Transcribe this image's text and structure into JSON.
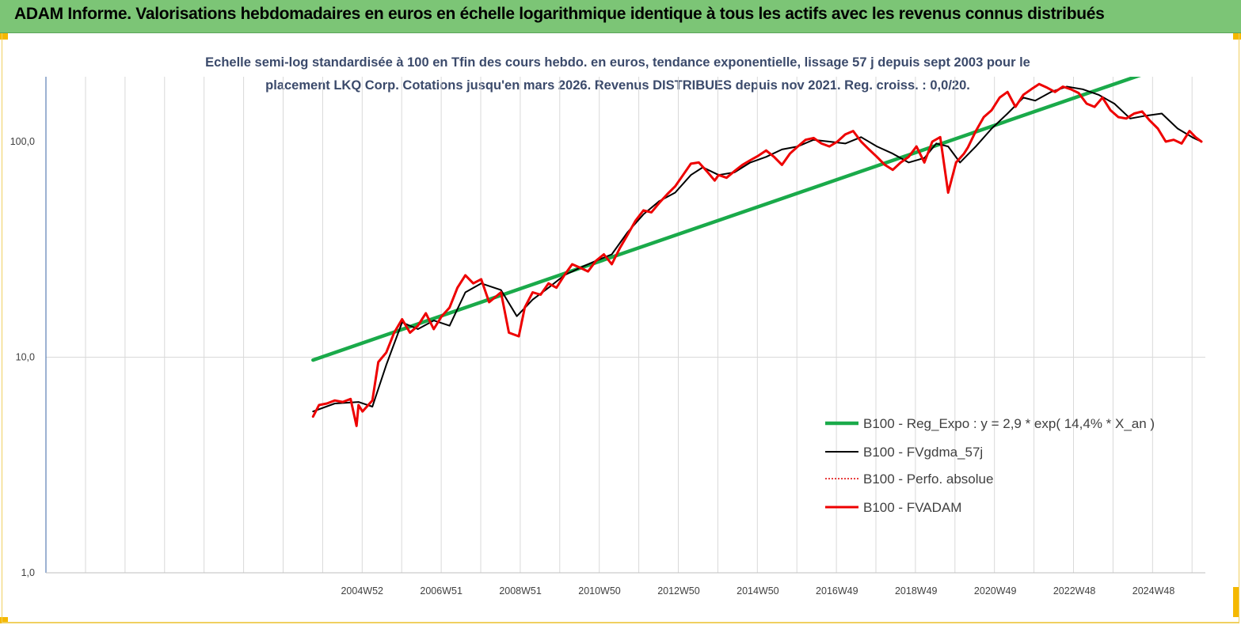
{
  "header": {
    "title": "ADAM Informe. Valorisations hebdomadaires en euros en échelle logarithmique identique à tous les actifs avec les revenus connus distribués"
  },
  "colors": {
    "banner": "#7cc576",
    "regression": "#1aaa4a",
    "smoothed": "#000000",
    "perf": "#e00000",
    "fvadam": "#ee0000",
    "grid": "#d9d9d9",
    "axis": "#5b7fb5"
  },
  "chart_data": {
    "type": "line",
    "title_line1": "Echelle semi-log standardisée à 100 en Tfin des cours hebdo. en euros, tendance exponentielle, lissage 57 j depuis sept 2003  pour le",
    "title_line2": "placement LKQ Corp. Cotations jusqu'en mars 2026. Revenus DISTRIBUES depuis nov 2021. Reg. croiss. : 0,0/20.",
    "y_scale": "log",
    "y_ticks": [
      "1,0",
      "10,0",
      "100,0"
    ],
    "y_tick_values": [
      1,
      10,
      100
    ],
    "ylim": [
      1,
      200
    ],
    "x_ticks": [
      "2004W52",
      "2006W51",
      "2008W51",
      "2010W50",
      "2012W50",
      "2014W50",
      "2016W49",
      "2018W49",
      "2020W49",
      "2022W48",
      "2024W48"
    ],
    "x_tick_values": [
      2004.99,
      2006.99,
      2008.99,
      2010.99,
      2012.99,
      2014.99,
      2016.99,
      2018.99,
      2020.99,
      2022.99,
      2024.99
    ],
    "xlim": [
      1997.0,
      2026.3
    ],
    "grid": "vertical",
    "legend_position": "lower-right",
    "series": [
      {
        "name": "B100 - Reg_Expo : y = 2,9 * exp( 14,4% *  X_an )",
        "x": [
          2003.75,
          2026.2
        ],
        "y": [
          9.7,
          254.7
        ]
      },
      {
        "name": "B100 - FVgdma_57j",
        "x": [
          2003.75,
          2004.3,
          2004.9,
          2005.25,
          2005.6,
          2006.0,
          2006.4,
          2006.8,
          2007.2,
          2007.6,
          2008.0,
          2008.5,
          2008.9,
          2009.3,
          2009.7,
          2010.1,
          2010.5,
          2010.9,
          2011.3,
          2011.7,
          2012.1,
          2012.5,
          2012.9,
          2013.3,
          2013.6,
          2014.0,
          2014.4,
          2014.8,
          2015.2,
          2015.6,
          2016.0,
          2016.4,
          2016.8,
          2017.2,
          2017.6,
          2018.0,
          2018.4,
          2018.8,
          2019.2,
          2019.5,
          2019.8,
          2020.1,
          2020.5,
          2020.9,
          2021.3,
          2021.7,
          2022.0,
          2022.4,
          2022.8,
          2023.2,
          2023.6,
          2024.0,
          2024.4,
          2024.8,
          2025.2,
          2025.6,
          2026.0,
          2026.2
        ],
        "y": [
          5.6,
          6.1,
          6.2,
          5.9,
          9.2,
          14.5,
          13.5,
          14.8,
          14.0,
          20.0,
          22.0,
          20.5,
          15.5,
          18.5,
          21.0,
          24.0,
          26.0,
          28.0,
          30.0,
          38.0,
          46.0,
          53.0,
          58.0,
          70.0,
          76.0,
          70.0,
          72.0,
          80.0,
          85.0,
          92.0,
          95.0,
          102.0,
          100.0,
          98.0,
          105.0,
          95.0,
          88.0,
          80.0,
          84.0,
          98.0,
          95.0,
          80.0,
          95.0,
          115.0,
          135.0,
          160.0,
          155.0,
          170.0,
          180.0,
          175.0,
          165.0,
          150.0,
          128.0,
          132.0,
          135.0,
          115.0,
          104.0,
          100.0
        ]
      },
      {
        "name": "B100 - Perfo. absolue",
        "x": [],
        "y": []
      },
      {
        "name": "B100 - FVADAM",
        "x": [
          2003.75,
          2003.9,
          2004.1,
          2004.3,
          2004.5,
          2004.7,
          2004.85,
          2004.9,
          2005.0,
          2005.25,
          2005.4,
          2005.6,
          2005.8,
          2006.0,
          2006.2,
          2006.4,
          2006.6,
          2006.8,
          2007.0,
          2007.2,
          2007.4,
          2007.6,
          2007.8,
          2008.0,
          2008.2,
          2008.5,
          2008.7,
          2008.95,
          2009.1,
          2009.3,
          2009.5,
          2009.7,
          2009.9,
          2010.1,
          2010.3,
          2010.5,
          2010.7,
          2010.9,
          2011.1,
          2011.3,
          2011.5,
          2011.7,
          2011.9,
          2012.1,
          2012.3,
          2012.5,
          2012.7,
          2012.9,
          2013.1,
          2013.3,
          2013.5,
          2013.7,
          2013.9,
          2014.0,
          2014.2,
          2014.4,
          2014.6,
          2014.8,
          2015.0,
          2015.2,
          2015.4,
          2015.6,
          2015.8,
          2016.0,
          2016.2,
          2016.4,
          2016.6,
          2016.8,
          2017.0,
          2017.2,
          2017.4,
          2017.6,
          2017.8,
          2018.0,
          2018.2,
          2018.4,
          2018.6,
          2018.8,
          2019.0,
          2019.2,
          2019.4,
          2019.6,
          2019.8,
          2020.0,
          2020.2,
          2020.3,
          2020.5,
          2020.7,
          2020.9,
          2021.1,
          2021.3,
          2021.5,
          2021.7,
          2021.9,
          2022.1,
          2022.3,
          2022.5,
          2022.7,
          2022.9,
          2023.1,
          2023.3,
          2023.5,
          2023.7,
          2023.9,
          2024.1,
          2024.3,
          2024.5,
          2024.7,
          2024.9,
          2025.1,
          2025.3,
          2025.5,
          2025.7,
          2025.9,
          2026.05,
          2026.2
        ],
        "y": [
          5.3,
          6.0,
          6.1,
          6.3,
          6.2,
          6.4,
          4.8,
          6.0,
          5.6,
          6.3,
          9.5,
          10.5,
          13.0,
          15.0,
          13.0,
          14.0,
          16.0,
          13.5,
          15.5,
          17.0,
          21.0,
          24.0,
          22.0,
          23.0,
          18.0,
          20.0,
          13.0,
          12.5,
          17.0,
          20.0,
          19.5,
          22.0,
          21.0,
          24.0,
          27.0,
          26.0,
          25.0,
          28.0,
          30.0,
          27.0,
          32.0,
          37.0,
          43.0,
          48.0,
          47.0,
          52.0,
          57.0,
          62.0,
          70.0,
          79.0,
          80.0,
          73.0,
          66.0,
          70.0,
          68.0,
          73.0,
          78.0,
          82.0,
          86.0,
          91.0,
          85.0,
          78.0,
          88.0,
          95.0,
          102.0,
          104.0,
          98.0,
          95.0,
          100.0,
          108.0,
          112.0,
          100.0,
          92.0,
          85.0,
          78.0,
          74.0,
          80.0,
          85.0,
          95.0,
          80.0,
          100.0,
          105.0,
          58.0,
          80.0,
          88.0,
          94.0,
          112.0,
          130.0,
          140.0,
          160.0,
          170.0,
          145.0,
          165.0,
          175.0,
          185.0,
          178.0,
          170.0,
          180.0,
          175.0,
          168.0,
          150.0,
          145.0,
          160.0,
          140.0,
          130.0,
          128.0,
          135.0,
          138.0,
          125.0,
          115.0,
          100.0,
          102.0,
          98.0,
          112.0,
          105.0,
          100.0
        ]
      }
    ]
  }
}
